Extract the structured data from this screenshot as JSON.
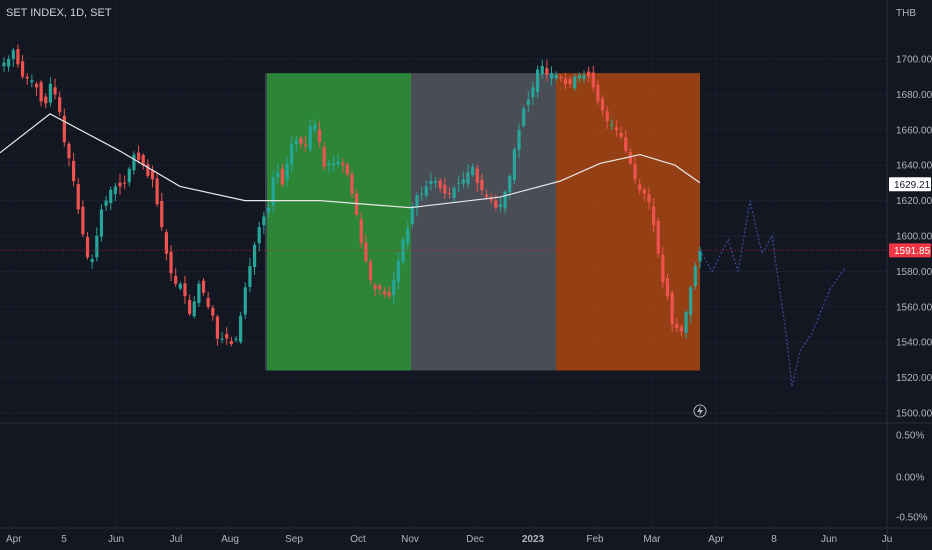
{
  "header": {
    "symbol_title": "SET INDEX, 1D, SET",
    "currency": "THB"
  },
  "colors": {
    "background": "#131722",
    "up": "#26a69a",
    "down": "#ef5350",
    "ma_line": "#e8e8e8",
    "projection": "#3b4a9e",
    "zone_green": "#2e8b3a",
    "zone_gray": "#4c5058",
    "zone_orange": "#9c4214",
    "last_price_line": "#c2202f"
  },
  "chart_data": [
    {
      "type": "candlestick",
      "panel": "price",
      "x_tick_labels": [
        "Apr",
        "5",
        "Jun",
        "Jul",
        "Aug",
        "Sep",
        "Oct",
        "Nov",
        "Dec",
        "2023",
        "Feb",
        "Mar",
        "Apr",
        "8",
        "Jun",
        "Ju"
      ],
      "y_tick_labels": [
        "1700.00",
        "1680.00",
        "1660.00",
        "1640.00",
        "1620.00",
        "1600.00",
        "1580.00",
        "1560.00",
        "1540.00",
        "1520.00",
        "1500.00"
      ],
      "ylim": [
        1496,
        1728
      ],
      "ylabel": "THB",
      "series": [
        {
          "kind": "close",
          "values": [
            1698,
            1700,
            1705,
            1697,
            1690,
            1689,
            1688,
            1684,
            1676,
            1675,
            1686,
            1680,
            1670,
            1653,
            1644,
            1631,
            1615,
            1601,
            1588,
            1587,
            1600,
            1615,
            1620,
            1626,
            1628,
            1628,
            1630,
            1638,
            1646,
            1643,
            1640,
            1634,
            1632,
            1618,
            1605,
            1590,
            1579,
            1573,
            1573,
            1566,
            1556,
            1563,
            1573,
            1568,
            1560,
            1555,
            1542,
            1542,
            1542,
            1539,
            1542,
            1555,
            1571,
            1583,
            1595,
            1605,
            1611,
            1616,
            1633,
            1636,
            1629,
            1641,
            1652,
            1654,
            1652,
            1651,
            1662,
            1663,
            1653,
            1639,
            1641,
            1641,
            1642,
            1640,
            1635,
            1624,
            1612,
            1596,
            1586,
            1575,
            1570,
            1570,
            1567,
            1566,
            1575,
            1586,
            1598,
            1604,
            1617,
            1623,
            1624,
            1628,
            1631,
            1631,
            1627,
            1624,
            1624,
            1627,
            1630,
            1632,
            1636,
            1639,
            1630,
            1626,
            1622,
            1620,
            1616,
            1618,
            1625,
            1634,
            1649,
            1660,
            1672,
            1677,
            1684,
            1694,
            1696,
            1691,
            1692,
            1691,
            1689,
            1686,
            1686,
            1690,
            1691,
            1691,
            1690,
            1684,
            1676,
            1671,
            1665,
            1663,
            1660,
            1656,
            1648,
            1641,
            1632,
            1626,
            1624,
            1619,
            1606,
            1590,
            1574,
            1566,
            1550,
            1548,
            1546,
            1557,
            1571,
            1583,
            1592
          ]
        },
        {
          "kind": "moving_average",
          "name": "",
          "range_values": [
            1647,
            1669,
            1648,
            1650,
            1643,
            1623,
            1622,
            1619,
            1615,
            1628,
            1635,
            1645,
            1648,
            1644,
            1630
          ]
        },
        {
          "kind": "projection",
          "name": "",
          "range_values": [
            1592,
            1580,
            1598,
            1580,
            1620,
            1590,
            1600,
            1545,
            1515,
            1535,
            1545,
            1570,
            1582
          ]
        }
      ],
      "shaded_zones": [
        {
          "from": "Aug",
          "to": "Nov",
          "y_range": [
            1524,
            1692
          ],
          "color": "zone_green"
        },
        {
          "from": "Nov",
          "to": "2023",
          "y_range": [
            1524,
            1692
          ],
          "color": "zone_gray"
        },
        {
          "from": "2023",
          "to": "Mar",
          "y_range": [
            1524,
            1692
          ],
          "color": "zone_orange"
        }
      ],
      "price_tags": [
        {
          "label": "1629.21",
          "style": "ma",
          "value": 1629.21
        },
        {
          "label": "1591.85",
          "style": "last",
          "value": 1591.85
        }
      ],
      "grid": true
    },
    {
      "type": "line",
      "panel": "indicator",
      "y_tick_labels": [
        "0.50%",
        "0.00%",
        "-0.50%"
      ],
      "values": []
    }
  ]
}
